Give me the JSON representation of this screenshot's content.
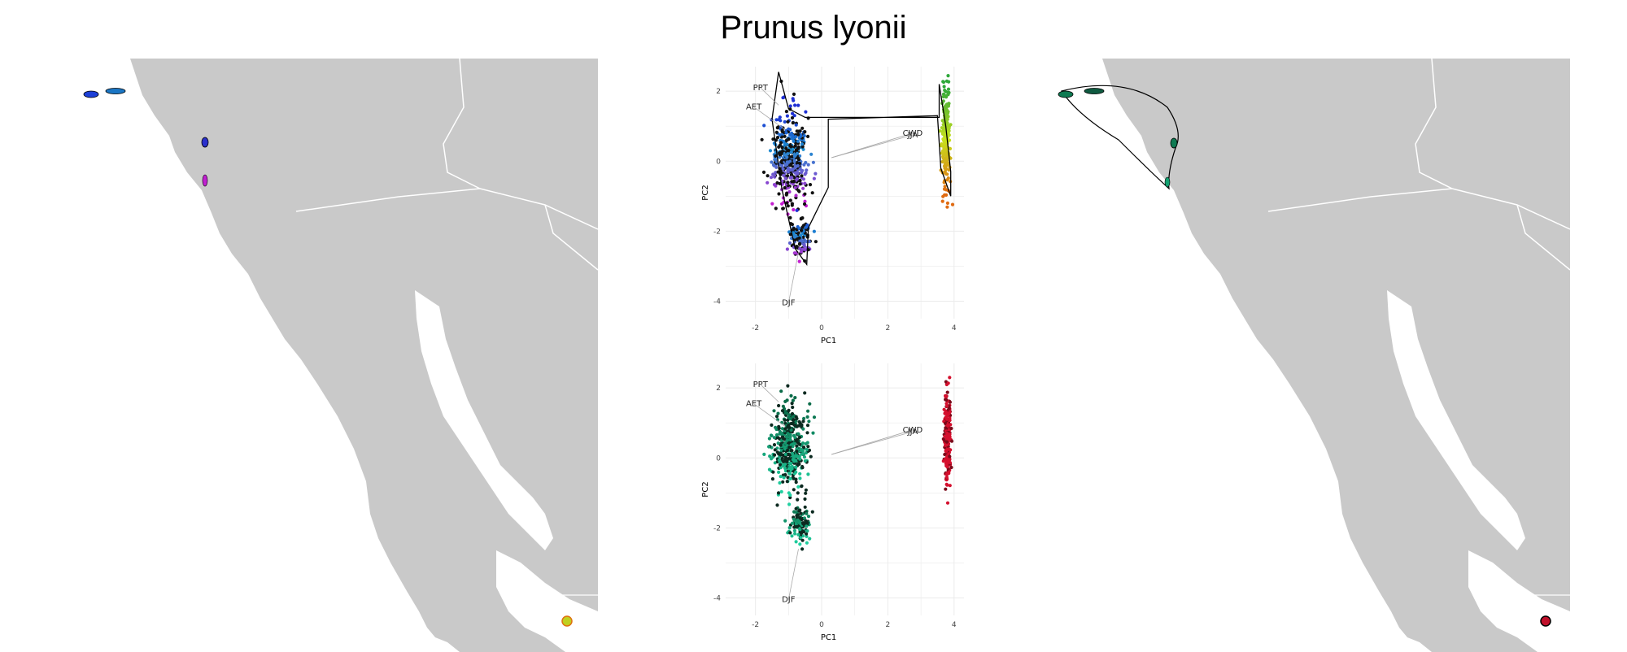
{
  "figure": {
    "title": "Prunus lyonii"
  },
  "colors": {
    "land": "#c9c9c9",
    "border": "#ffffff",
    "grid": "#ebebeb",
    "hull": "#000000",
    "loading_line": "#aaaaaa"
  },
  "chart_data": [
    {
      "type": "scatter",
      "panel": "pca-top",
      "xlabel": "PC1",
      "ylabel": "PC2",
      "xlim": [
        -2.9,
        4.3
      ],
      "ylim": [
        -4.5,
        2.7
      ],
      "xticks": [
        -2,
        0,
        2,
        4
      ],
      "yticks": [
        -4,
        -2,
        0,
        2
      ],
      "grid": true,
      "clusters": [
        {
          "name": "",
          "cx": -0.95,
          "cy": 0.1,
          "wx": 0.55,
          "wy": 1.25,
          "n": 420,
          "color_mode": "gradient-blue-purple"
        },
        {
          "name": "",
          "cx": -0.65,
          "cy": -2.2,
          "wx": 0.3,
          "wy": 0.55,
          "n": 110,
          "color_mode": "gradient-blue-purple"
        },
        {
          "name": "",
          "cx": 3.75,
          "cy": 0.6,
          "wx": 0.12,
          "wy": 1.5,
          "n": 240,
          "color_mode": "gradient-green-orange"
        }
      ],
      "hull": [
        [
          -1.3,
          2.55
        ],
        [
          -1.0,
          1.5
        ],
        [
          -0.5,
          1.25
        ],
        [
          3.55,
          1.25
        ],
        [
          3.55,
          2.2
        ],
        [
          3.75,
          1.0
        ],
        [
          3.9,
          -0.3
        ],
        [
          3.9,
          -1.0
        ],
        [
          3.6,
          -0.2
        ],
        [
          3.5,
          1.3
        ],
        [
          0.2,
          1.2
        ],
        [
          0.2,
          -0.75
        ],
        [
          -0.4,
          -1.9
        ],
        [
          -0.45,
          -2.95
        ],
        [
          -0.8,
          -2.5
        ],
        [
          -1.2,
          -0.8
        ],
        [
          -1.5,
          1.2
        ],
        [
          -1.3,
          2.55
        ]
      ],
      "loadings": [
        {
          "label": "PPT",
          "x": -1.85,
          "y": 2.1,
          "tx": -1.3,
          "ty": 1.6
        },
        {
          "label": "AET",
          "x": -2.05,
          "y": 1.55,
          "tx": -1.1,
          "ty": 0.9
        },
        {
          "label": "CWD",
          "x": 2.75,
          "y": 0.8,
          "tx": 0.3,
          "ty": 0.1
        },
        {
          "label": "JJA",
          "x": 2.75,
          "y": 0.75,
          "tx": 0.3,
          "ty": 0.1
        },
        {
          "label": "DJF",
          "x": -1.0,
          "y": -4.05,
          "tx": -0.7,
          "ty": -2.6
        }
      ]
    },
    {
      "type": "scatter",
      "panel": "pca-bottom",
      "xlabel": "PC1",
      "ylabel": "PC2",
      "xlim": [
        -2.9,
        4.3
      ],
      "ylim": [
        -4.5,
        2.7
      ],
      "xticks": [
        -2,
        0,
        2,
        4
      ],
      "yticks": [
        -4,
        -2,
        0,
        2
      ],
      "grid": true,
      "clusters": [
        {
          "name": "",
          "cx": -0.95,
          "cy": 0.3,
          "wx": 0.55,
          "wy": 1.15,
          "n": 420,
          "color_mode": "dark-green-teal"
        },
        {
          "name": "",
          "cx": -0.65,
          "cy": -1.9,
          "wx": 0.3,
          "wy": 0.55,
          "n": 110,
          "color_mode": "dark-green-teal"
        },
        {
          "name": "",
          "cx": 3.8,
          "cy": 0.5,
          "wx": 0.1,
          "wy": 1.4,
          "n": 220,
          "color_mode": "red"
        }
      ],
      "loadings": [
        {
          "label": "PPT",
          "x": -1.85,
          "y": 2.1,
          "tx": -1.3,
          "ty": 1.6
        },
        {
          "label": "AET",
          "x": -2.05,
          "y": 1.55,
          "tx": -1.1,
          "ty": 0.9
        },
        {
          "label": "CWD",
          "x": 2.75,
          "y": 0.8,
          "tx": 0.3,
          "ty": 0.1
        },
        {
          "label": "JJA",
          "x": 2.75,
          "y": 0.75,
          "tx": 0.3,
          "ty": 0.1
        },
        {
          "label": "DJF",
          "x": -1.0,
          "y": -4.05,
          "tx": -0.7,
          "ty": -2.6
        }
      ]
    }
  ]
}
